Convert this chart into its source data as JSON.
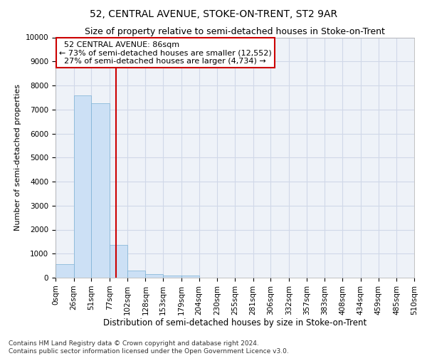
{
  "title": "52, CENTRAL AVENUE, STOKE-ON-TRENT, ST2 9AR",
  "subtitle": "Size of property relative to semi-detached houses in Stoke-on-Trent",
  "xlabel": "Distribution of semi-detached houses by size in Stoke-on-Trent",
  "ylabel": "Number of semi-detached properties",
  "property_label": "52 CENTRAL AVENUE: 86sqm",
  "pct_smaller": 73,
  "pct_larger": 27,
  "n_smaller": 12552,
  "n_larger": 4734,
  "bin_edges": [
    0,
    26,
    51,
    77,
    102,
    128,
    153,
    179,
    204,
    230,
    255,
    281,
    306,
    332,
    357,
    383,
    408,
    434,
    459,
    485,
    510
  ],
  "bar_heights": [
    550,
    7600,
    7250,
    1350,
    300,
    150,
    100,
    75,
    0,
    0,
    0,
    0,
    0,
    0,
    0,
    0,
    0,
    0,
    0,
    0
  ],
  "bar_color": "#cce0f5",
  "bar_edge_color": "#7ab0d4",
  "vline_color": "#cc0000",
  "vline_x": 86,
  "ylim": [
    0,
    10000
  ],
  "yticks": [
    0,
    1000,
    2000,
    3000,
    4000,
    5000,
    6000,
    7000,
    8000,
    9000,
    10000
  ],
  "annotation_box_color": "#cc0000",
  "grid_color": "#d0d8e8",
  "background_color": "#eef2f8",
  "footer": "Contains HM Land Registry data © Crown copyright and database right 2024.\nContains public sector information licensed under the Open Government Licence v3.0.",
  "title_fontsize": 10,
  "subtitle_fontsize": 9,
  "xlabel_fontsize": 8.5,
  "ylabel_fontsize": 8,
  "tick_fontsize": 7.5,
  "annotation_fontsize": 8,
  "footer_fontsize": 6.5
}
